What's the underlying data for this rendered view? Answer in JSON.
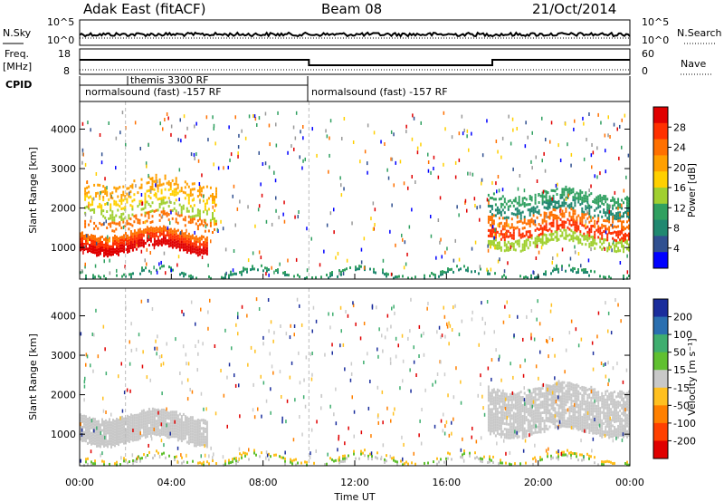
{
  "header": {
    "station": "Adak East (fitACF)",
    "beam": "Beam 08",
    "date": "21/Oct/2014"
  },
  "strip_labels": {
    "nsky": "N.Sky",
    "nsearch": "N.Search",
    "freq_top": "Freq.",
    "freq_unit": "[MHz]",
    "nave": "Nave",
    "cpid": "CPID",
    "nsky_ticks": [
      "10^5",
      "10^0"
    ],
    "nsearch_ticks": [
      "10^5",
      "10^0"
    ],
    "freq_ticks": [
      "18",
      "8"
    ],
    "nave_ticks": [
      "60",
      "0"
    ]
  },
  "cpid_labels": [
    {
      "t_hours": 1.9,
      "text": "themis 3300 RF",
      "row": "upper"
    },
    {
      "t_hours": 0.1,
      "text": "normalsound (fast) -157 RF",
      "row": "lower"
    },
    {
      "t_hours": 10.05,
      "text": "normalsound (fast) -157 RF",
      "row": "lower"
    }
  ],
  "chart_data": [
    {
      "type": "heatmap",
      "name": "power",
      "ylabel": "Slant Range [km]",
      "xlim_hours": [
        0,
        24
      ],
      "ylim_km": [
        200,
        4700
      ],
      "yticks": [
        "1000",
        "2000",
        "3000",
        "4000"
      ],
      "colorbar": {
        "label": "Power [dB]",
        "ticks": [
          "28",
          "24",
          "20",
          "16",
          "12",
          "8",
          "4"
        ],
        "colors": [
          "#e00000",
          "#ff3000",
          "#ff7000",
          "#ffa000",
          "#ffd000",
          "#a0d030",
          "#30a060",
          "#208870",
          "#305090",
          "#0000ff"
        ]
      },
      "regions": [
        {
          "label": "early high power band",
          "t_start": 0.0,
          "t_end": 5.6,
          "range_km": [
            900,
            1400
          ],
          "level_db": 28
        },
        {
          "label": "early secondary echoes",
          "t_start": 0.2,
          "t_end": 6.0,
          "range_km": [
            1500,
            2700
          ],
          "level_db": 16
        },
        {
          "label": "late echoes",
          "t_start": 17.8,
          "t_end": 24.0,
          "range_km": [
            1000,
            2400
          ],
          "level_db": 20
        },
        {
          "label": "ground scatter near range",
          "t_start": 0.0,
          "t_end": 24.0,
          "range_km": [
            250,
            400
          ],
          "level_db": 10
        }
      ]
    },
    {
      "type": "heatmap",
      "name": "velocity",
      "ylabel": "Slant Range [km]",
      "xlabel": "Time UT",
      "xlim_hours": [
        0,
        24
      ],
      "ylim_km": [
        200,
        4700
      ],
      "yticks": [
        "1000",
        "2000",
        "3000",
        "4000"
      ],
      "xticks": [
        "00:00",
        "04:00",
        "08:00",
        "12:00",
        "16:00",
        "20:00",
        "00:00"
      ],
      "colorbar": {
        "label": "Velocity [m s⁻¹]",
        "ticks": [
          "200",
          "100",
          "50",
          "15",
          "-15",
          "-50",
          "-100",
          "-200"
        ],
        "colors": [
          "#1a2d9c",
          "#2a6fb0",
          "#3fae6f",
          "#60c030",
          "#c8c8c8",
          "#ffc020",
          "#ff8000",
          "#ff4000",
          "#e00000"
        ]
      },
      "regions": [
        {
          "label": "early ground scatter",
          "t_start": 0.0,
          "t_end": 5.6,
          "range_km": [
            800,
            1500
          ],
          "velocity": 0
        },
        {
          "label": "late ground scatter",
          "t_start": 17.8,
          "t_end": 24.0,
          "range_km": [
            1000,
            2200
          ],
          "velocity": 0
        },
        {
          "label": "near range scatter",
          "t_start": 0.0,
          "t_end": 24.0,
          "range_km": [
            250,
            450
          ],
          "velocity": 30
        }
      ]
    }
  ]
}
